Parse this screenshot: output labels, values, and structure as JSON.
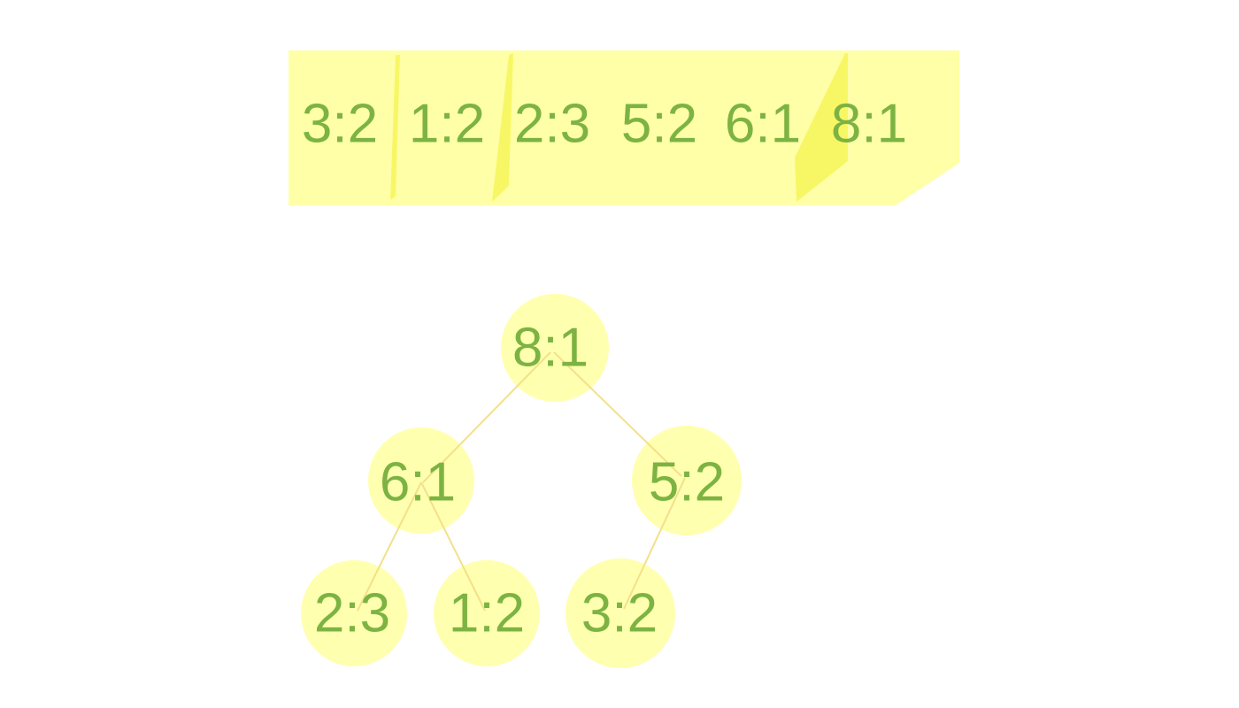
{
  "array": {
    "items": [
      {
        "label": "3:2"
      },
      {
        "label": "1:2"
      },
      {
        "label": "2:3"
      },
      {
        "label": "5:2"
      },
      {
        "label": "6:1"
      },
      {
        "label": "8:1"
      }
    ]
  },
  "tree": {
    "nodes": [
      {
        "id": "root",
        "label": "8:1"
      },
      {
        "id": "left",
        "label": "6:1"
      },
      {
        "id": "right",
        "label": "5:2"
      },
      {
        "id": "left-left",
        "label": "2:3"
      },
      {
        "id": "left-right",
        "label": "1:2"
      },
      {
        "id": "right-left",
        "label": "3:2"
      }
    ],
    "edges": [
      {
        "from": "root",
        "to": "left"
      },
      {
        "from": "root",
        "to": "right"
      },
      {
        "from": "left",
        "to": "left-left"
      },
      {
        "from": "left",
        "to": "left-right"
      },
      {
        "from": "right",
        "to": "right-left"
      }
    ]
  },
  "colors": {
    "cell_fill": "#ffffa8",
    "divider_fill": "#f6f65a",
    "node_fill": "#ffffb0",
    "edge_stroke": "#f3e08a",
    "text": "#7cb342"
  }
}
